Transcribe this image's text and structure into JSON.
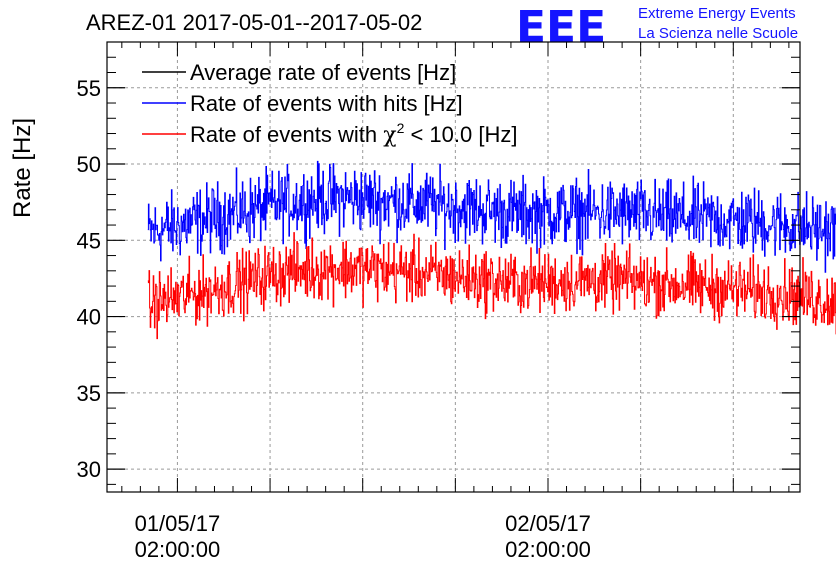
{
  "chart_data": {
    "type": "line",
    "title": "AREZ-01 2017-05-01--2017-05-02",
    "ylabel": "Rate [Hz]",
    "xlabel": "",
    "ylim": [
      28.5,
      58
    ],
    "xlim_hours": [
      -1.9,
      16.8
    ],
    "y_ticks": [
      30,
      35,
      40,
      45,
      50,
      55
    ],
    "x_ticks": [
      {
        "hour": 0,
        "line1": "01/05/17",
        "line2": "02:00:00"
      },
      {
        "hour": 10,
        "line1": "02/05/17",
        "line2": "02:00:00"
      }
    ],
    "grid": true,
    "legend_position": "top-left",
    "x_range_hours": [
      -0.8,
      18.0
    ],
    "series": [
      {
        "name": "Average rate of events [Hz]",
        "color": "#000000",
        "x_hours": [],
        "values": []
      },
      {
        "name": "Rate of events with hits [Hz]",
        "color": "#0000ff",
        "x_hours": [
          -0.8,
          1,
          3,
          4.5,
          6,
          7.5,
          9,
          10.5,
          12,
          13.5,
          15,
          16.5,
          18.0
        ],
        "values": [
          45.5,
          46.5,
          47.5,
          47.8,
          47.5,
          47.2,
          46.8,
          46.8,
          46.8,
          46.5,
          46.3,
          46.0,
          45.5
        ],
        "noise_amplitude": 1.1
      },
      {
        "name": "Rate of events with χ² < 10.0 [Hz]",
        "color": "#ff0000",
        "x_hours": [
          -0.8,
          1,
          3,
          4.5,
          6,
          7.5,
          9,
          10.5,
          12,
          13.5,
          15,
          16.5,
          18.0
        ],
        "values": [
          40.8,
          41.8,
          43.0,
          43.2,
          43.0,
          42.6,
          42.2,
          42.3,
          42.4,
          42.1,
          41.8,
          41.5,
          40.8
        ],
        "noise_amplitude": 1.0
      }
    ],
    "legend": {
      "entries": [
        {
          "label": "Average rate of events [Hz]",
          "color": "#000000"
        },
        {
          "label": "Rate of events with hits [Hz]",
          "color": "#0000ff"
        },
        {
          "label_pre": "Rate of events with ",
          "label_chi": "χ",
          "label_sup": "2",
          "label_post": " < 10.0 [Hz]",
          "color": "#ff0000"
        }
      ]
    }
  },
  "logo": {
    "letters": "EEE",
    "line1": "Extreme Energy Events",
    "line2": "La Scienza nelle Scuole",
    "color": "#1414ff"
  }
}
